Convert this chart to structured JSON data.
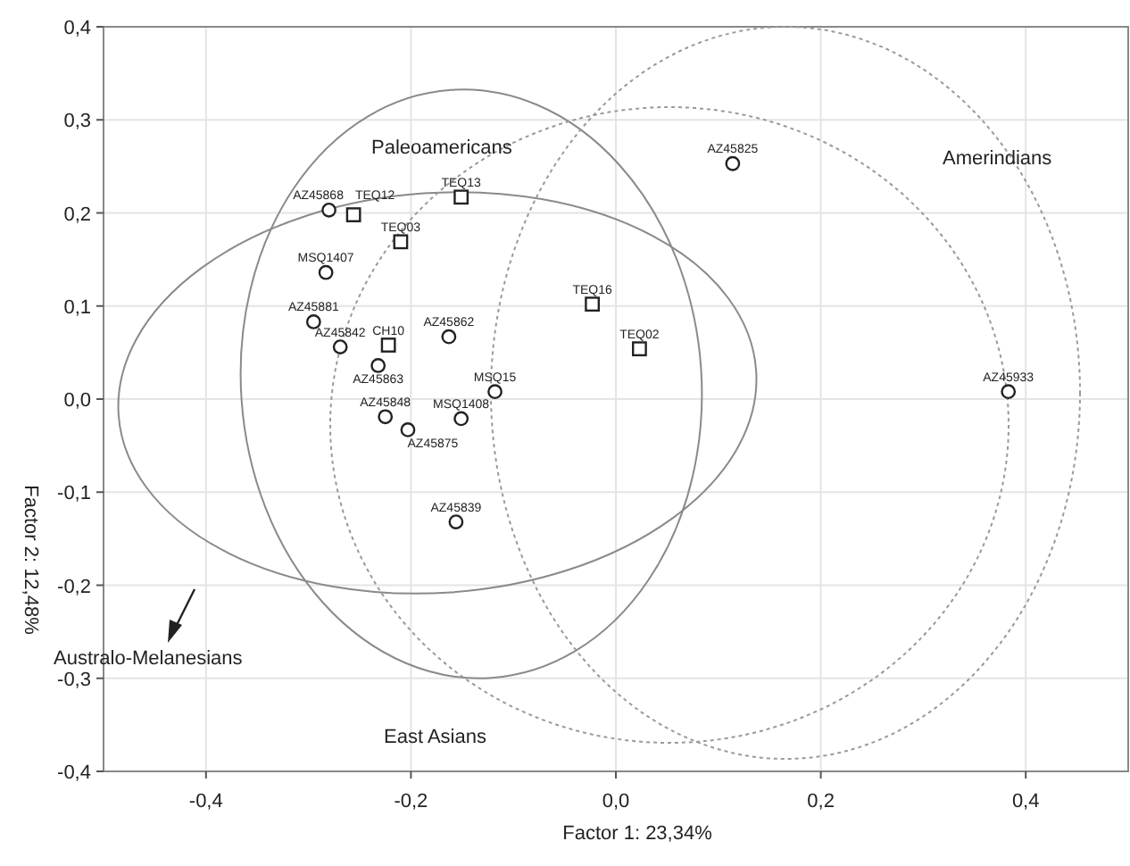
{
  "chart_data": {
    "type": "scatter",
    "xlabel": "Factor 1: 23,34%",
    "ylabel": "Factor 2: 12,48%",
    "xlim": [
      -0.5,
      0.5
    ],
    "ylim": [
      -0.4,
      0.4
    ],
    "xticks": [
      {
        "value": -0.4,
        "label": "-0,4"
      },
      {
        "value": -0.2,
        "label": "-0,2"
      },
      {
        "value": 0,
        "label": "0,0"
      },
      {
        "value": 0.2,
        "label": "0,2"
      },
      {
        "value": 0.4,
        "label": "0,4"
      }
    ],
    "yticks": [
      {
        "value": -0.4,
        "label": "-0,4"
      },
      {
        "value": -0.3,
        "label": "-0,3"
      },
      {
        "value": -0.2,
        "label": "-0,2"
      },
      {
        "value": -0.1,
        "label": "-0,1"
      },
      {
        "value": 0,
        "label": "0,0"
      },
      {
        "value": 0.1,
        "label": "0,1"
      },
      {
        "value": 0.2,
        "label": "0,2"
      },
      {
        "value": 0.3,
        "label": "0,3"
      },
      {
        "value": 0.4,
        "label": "0,4"
      }
    ],
    "grid": true,
    "series": [
      {
        "color": "#222222",
        "marker": "circle",
        "x": [
          -0.28,
          -0.283,
          -0.295,
          -0.269,
          -0.232,
          -0.163,
          -0.118,
          -0.151,
          -0.225,
          -0.203,
          -0.156,
          0.114,
          0.383
        ],
        "values": [
          0.203,
          0.136,
          0.083,
          0.056,
          0.036,
          0.067,
          0.008,
          -0.021,
          -0.019,
          -0.033,
          -0.132,
          0.253,
          0.008
        ]
      },
      {
        "color": "#222222",
        "marker": "square",
        "x": [
          -0.256,
          -0.151,
          -0.21,
          -0.222,
          -0.023,
          0.023
        ],
        "values": [
          0.198,
          0.217,
          0.169,
          0.058,
          0.102,
          0.054
        ]
      }
    ],
    "annotations": [
      "Paleoamericans",
      "Amerindians",
      "Australo-Melanesians",
      "East Asians",
      {
        "text": "AZ45868",
        "x": -0.28,
        "y": 0.203
      },
      {
        "text": "MSQ1407",
        "x": -0.283,
        "y": 0.136
      },
      {
        "text": "AZ45881",
        "x": -0.295,
        "y": 0.083
      },
      {
        "text": "AZ45842",
        "x": -0.269,
        "y": 0.056
      },
      {
        "text": "AZ45863",
        "x": -0.232,
        "y": 0.036
      },
      {
        "text": "AZ45862",
        "x": -0.163,
        "y": 0.067
      },
      {
        "text": "MSQ15",
        "x": -0.118,
        "y": 0.008
      },
      {
        "text": "MSQ1408",
        "x": -0.151,
        "y": -0.021
      },
      {
        "text": "AZ45848",
        "x": -0.225,
        "y": -0.019
      },
      {
        "text": "AZ45875",
        "x": -0.203,
        "y": -0.033
      },
      {
        "text": "AZ45839",
        "x": -0.156,
        "y": -0.132
      },
      {
        "text": "AZ45825",
        "x": 0.114,
        "y": 0.253
      },
      {
        "text": "AZ45933",
        "x": 0.383,
        "y": 0.008
      },
      {
        "text": "TEQ12",
        "x": -0.256,
        "y": 0.198
      },
      {
        "text": "TEQ13",
        "x": -0.151,
        "y": 0.217
      },
      {
        "text": "TEQ03",
        "x": -0.21,
        "y": 0.169
      },
      {
        "text": "CH10",
        "x": -0.222,
        "y": 0.058
      },
      {
        "text": "TEQ16",
        "x": -0.023,
        "y": 0.102
      },
      {
        "text": "TEQ02",
        "x": 0.023,
        "y": 0.054
      }
    ]
  }
}
